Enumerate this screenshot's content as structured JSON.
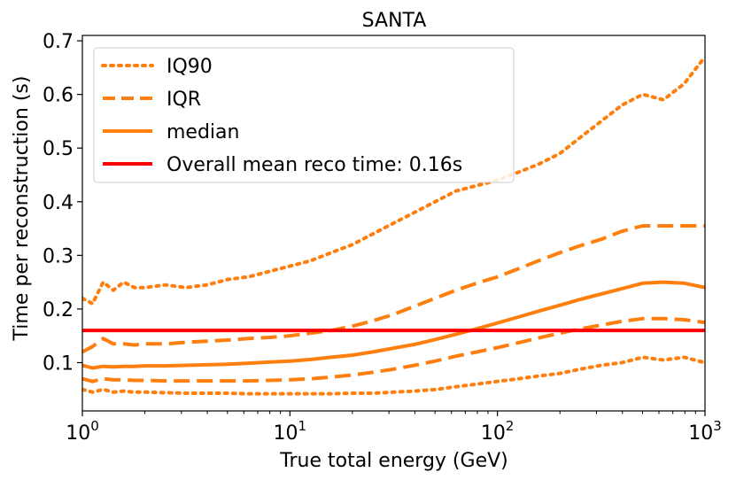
{
  "chart_data": {
    "type": "line",
    "title": "SANTA",
    "xlabel": "True total energy (GeV)",
    "ylabel": "Time per reconstruction (s)",
    "xscale": "log",
    "xlim": [
      1,
      1000
    ],
    "ylim": [
      0.01,
      0.71
    ],
    "xticks": [
      {
        "value": 1,
        "base": "10",
        "exp": "0"
      },
      {
        "value": 10,
        "base": "10",
        "exp": "1"
      },
      {
        "value": 100,
        "base": "10",
        "exp": "2"
      },
      {
        "value": 1000,
        "base": "10",
        "exp": "3"
      }
    ],
    "yticks": [
      0.1,
      0.2,
      0.3,
      0.4,
      0.5,
      0.6,
      0.7
    ],
    "legend_position": "top-left",
    "grid": false,
    "colors": {
      "series": "#ff7f0e",
      "mean": "#ff0000"
    },
    "x": [
      1,
      1.12,
      1.26,
      1.41,
      1.58,
      1.78,
      2,
      2.51,
      3.16,
      3.98,
      5.01,
      6.31,
      7.94,
      10,
      12.6,
      15.8,
      20,
      25.1,
      31.6,
      39.8,
      50.1,
      63.1,
      79.4,
      100,
      126,
      158,
      200,
      251,
      316,
      398,
      501,
      631,
      794,
      1000
    ],
    "series": [
      {
        "name": "IQ90",
        "style": "dotted",
        "role": "upper",
        "values": [
          0.22,
          0.21,
          0.25,
          0.235,
          0.25,
          0.24,
          0.24,
          0.245,
          0.24,
          0.245,
          0.255,
          0.26,
          0.27,
          0.28,
          0.29,
          0.305,
          0.32,
          0.34,
          0.36,
          0.38,
          0.4,
          0.42,
          0.43,
          0.44,
          0.455,
          0.47,
          0.49,
          0.52,
          0.55,
          0.58,
          0.6,
          0.59,
          0.62,
          0.67
        ]
      },
      {
        "name": "IQ90",
        "style": "dotted",
        "role": "lower",
        "values": [
          0.05,
          0.045,
          0.05,
          0.045,
          0.047,
          0.045,
          0.045,
          0.044,
          0.043,
          0.043,
          0.043,
          0.042,
          0.042,
          0.042,
          0.042,
          0.042,
          0.043,
          0.043,
          0.045,
          0.047,
          0.05,
          0.055,
          0.06,
          0.065,
          0.07,
          0.075,
          0.08,
          0.088,
          0.095,
          0.1,
          0.11,
          0.105,
          0.11,
          0.1
        ]
      },
      {
        "name": "IQR",
        "style": "dashed",
        "role": "upper",
        "values": [
          0.12,
          0.13,
          0.145,
          0.135,
          0.135,
          0.133,
          0.135,
          0.135,
          0.138,
          0.14,
          0.142,
          0.145,
          0.147,
          0.15,
          0.155,
          0.16,
          0.168,
          0.178,
          0.19,
          0.205,
          0.22,
          0.235,
          0.248,
          0.26,
          0.275,
          0.29,
          0.305,
          0.318,
          0.33,
          0.345,
          0.355,
          0.355,
          0.355,
          0.355
        ]
      },
      {
        "name": "IQR",
        "style": "dashed",
        "role": "lower",
        "values": [
          0.07,
          0.065,
          0.07,
          0.068,
          0.068,
          0.067,
          0.067,
          0.066,
          0.066,
          0.066,
          0.066,
          0.066,
          0.067,
          0.068,
          0.07,
          0.073,
          0.077,
          0.082,
          0.088,
          0.095,
          0.103,
          0.112,
          0.12,
          0.128,
          0.137,
          0.146,
          0.155,
          0.163,
          0.17,
          0.177,
          0.182,
          0.182,
          0.18,
          0.175
        ]
      },
      {
        "name": "median",
        "style": "solid",
        "values": [
          0.095,
          0.09,
          0.093,
          0.092,
          0.093,
          0.093,
          0.094,
          0.094,
          0.095,
          0.096,
          0.097,
          0.099,
          0.101,
          0.103,
          0.106,
          0.11,
          0.114,
          0.12,
          0.127,
          0.134,
          0.143,
          0.153,
          0.163,
          0.174,
          0.185,
          0.196,
          0.207,
          0.218,
          0.228,
          0.238,
          0.248,
          0.25,
          0.248,
          0.24
        ]
      }
    ],
    "mean_line": {
      "name": "Overall mean reco time: 0.16s",
      "value": 0.16
    },
    "legend": [
      {
        "label": "IQ90",
        "style": "dotted"
      },
      {
        "label": "IQR",
        "style": "dashed"
      },
      {
        "label": "median",
        "style": "solid"
      },
      {
        "label": "Overall mean reco time: 0.16s",
        "style": "mean"
      }
    ]
  }
}
